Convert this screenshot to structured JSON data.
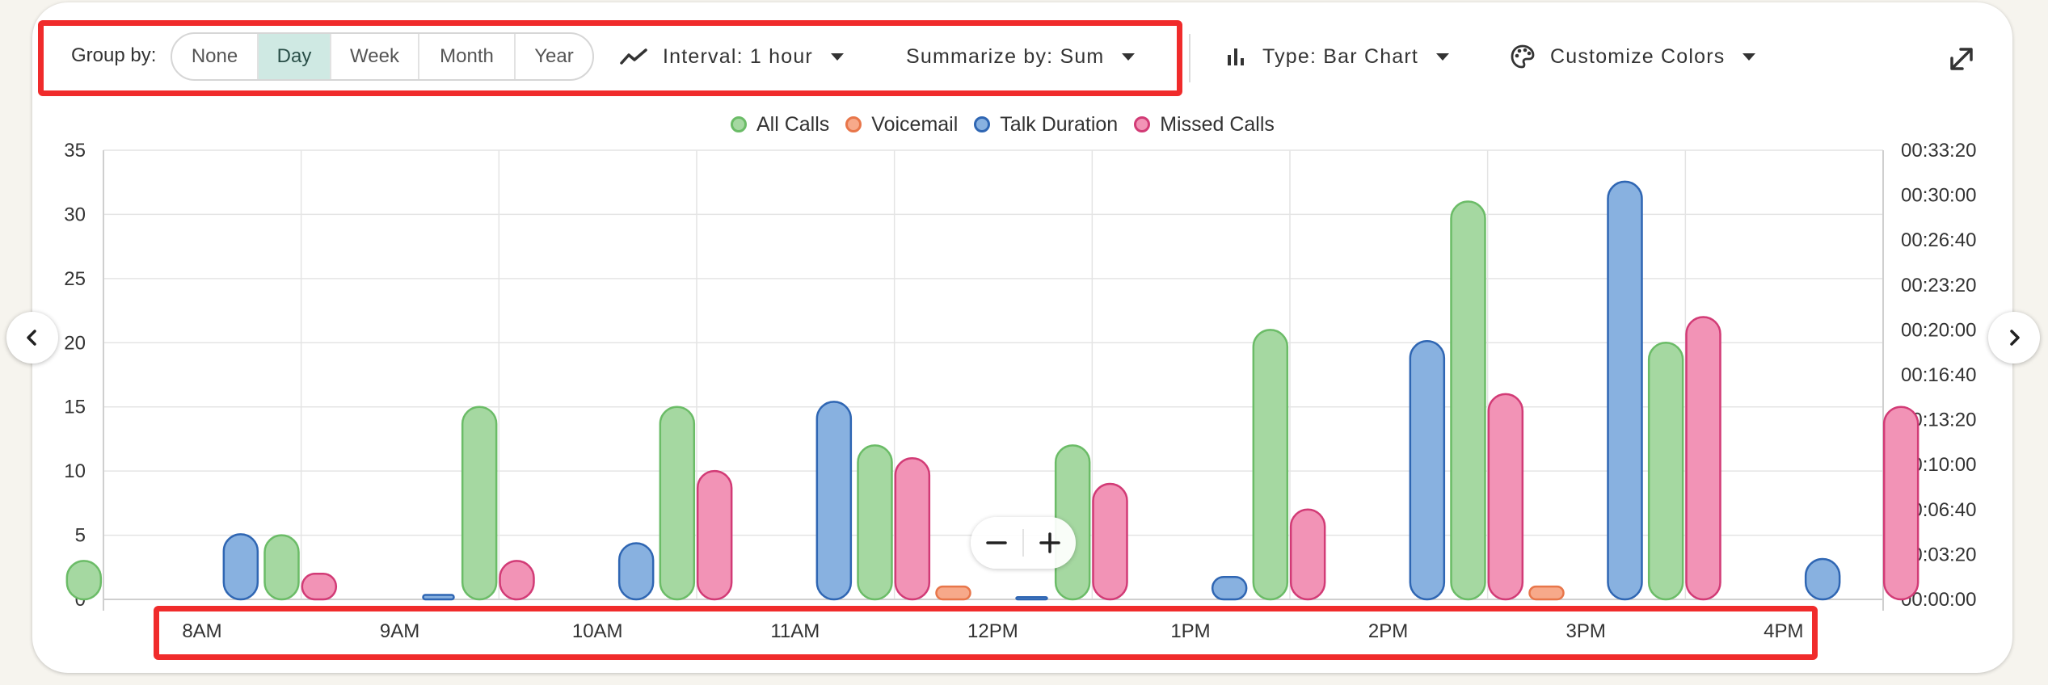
{
  "toolbar": {
    "group_by_label": "Group by:",
    "group_options": [
      "None",
      "Day",
      "Week",
      "Month",
      "Year"
    ],
    "group_active": "Day",
    "interval_label": "Interval: 1 hour",
    "summarize_label": "Summarize by: Sum",
    "type_label": "Type: Bar Chart",
    "colors_label": "Customize Colors"
  },
  "icons": {
    "interval": "trend-line-icon",
    "type": "bar-chart-icon",
    "colors": "palette-icon",
    "expand": "expand-icon",
    "prev": "chevron-left-icon",
    "next": "chevron-right-icon",
    "zoom_out": "minus-icon",
    "zoom_in": "plus-icon"
  },
  "highlight_color": "#f02b2b",
  "chart_data": {
    "type": "bar",
    "categories": [
      "8AM",
      "9AM",
      "10AM",
      "11AM",
      "12PM",
      "1PM",
      "2PM",
      "3PM",
      "4PM"
    ],
    "series": [
      {
        "name": "All Calls",
        "axis": "left",
        "fill": "#a5d8a1",
        "stroke": "#6bbc67",
        "values": [
          3,
          5,
          15,
          15,
          12,
          12,
          21,
          31,
          20
        ]
      },
      {
        "name": "Voicemail",
        "axis": "left",
        "fill": "#f7a98a",
        "stroke": "#e8764a",
        "values": [
          0,
          0,
          0,
          0,
          1,
          0,
          0,
          1,
          0
        ]
      },
      {
        "name": "Talk Duration",
        "axis": "right",
        "fill": "#88b1e0",
        "stroke": "#2f66b3",
        "values": [
          290,
          20,
          250,
          880,
          10,
          100,
          1150,
          1860,
          180
        ]
      },
      {
        "name": "Missed Calls",
        "axis": "left",
        "fill": "#f293b6",
        "stroke": "#d23b76",
        "values": [
          2,
          3,
          10,
          11,
          9,
          7,
          16,
          22,
          15
        ]
      }
    ],
    "left_axis": {
      "ticks": [
        "0",
        "5",
        "10",
        "15",
        "20",
        "25",
        "30",
        "35"
      ],
      "min": 0,
      "max": 35
    },
    "right_axis": {
      "ticks": [
        "00:00:00",
        "00:03:20",
        "00:06:40",
        "00:10:00",
        "00:13:20",
        "00:16:40",
        "00:20:00",
        "00:23:20",
        "00:26:40",
        "00:30:00",
        "00:33:20"
      ],
      "min": 0,
      "max": 2000
    },
    "grid": true,
    "legend_position": "top-center"
  }
}
